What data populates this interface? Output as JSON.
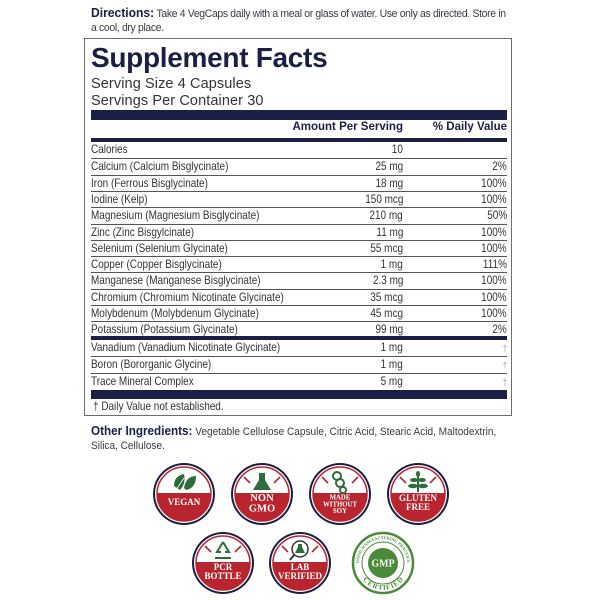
{
  "directions": {
    "label": "Directions:",
    "text": " Take 4 VegCaps daily with a meal or glass of water. Use only as directed. Store in a cool, dry place."
  },
  "supplement_facts": {
    "title": "Supplement Facts",
    "serving_size": "Serving Size 4 Capsules",
    "servings_per_container": "Servings Per Container 30",
    "columns": {
      "amount": "Amount Per Serving",
      "daily_value": "% Daily Value"
    },
    "rows": [
      {
        "name": "Calories",
        "amount": "10",
        "dv": ""
      },
      {
        "name": "Calcium (Calcium Bisglycinate)",
        "amount": "25 mg",
        "dv": "2%"
      },
      {
        "name": "Iron (Ferrous Bisglycinate)",
        "amount": "18 mg",
        "dv": "100%"
      },
      {
        "name": "Iodine (Kelp)",
        "amount": "150 mcg",
        "dv": "100%"
      },
      {
        "name": "Magnesium (Magnesium Bisglycinate)",
        "amount": "210 mg",
        "dv": "50%"
      },
      {
        "name": "Zinc (Zinc Bisgylcinate)",
        "amount": "11 mg",
        "dv": "100%"
      },
      {
        "name": "Selenium (Selenium Glycinate)",
        "amount": "55 mcg",
        "dv": "100%"
      },
      {
        "name": "Copper (Copper Bisglycinate)",
        "amount": "1 mg",
        "dv": "111%"
      },
      {
        "name": "Manganese (Manganese Bisglycinate)",
        "amount": "2.3 mg",
        "dv": "100%"
      },
      {
        "name": "Chromium (Chromium Nicotinate Glycinate)",
        "amount": "35 mcg",
        "dv": "100%"
      },
      {
        "name": "Molybdenum (Molybdenum Glycinate)",
        "amount": "45 mcg",
        "dv": "100%"
      },
      {
        "name": "Potassium (Potassium Glycinate)",
        "amount": "99 mg",
        "dv": "2%"
      }
    ],
    "rows_no_dv": [
      {
        "name": "Vanadium (Vanadium Nicotinate Glycinate)",
        "amount": "1 mg",
        "dv": "†"
      },
      {
        "name": "Boron (Bororganic Glycine)",
        "amount": "1 mg",
        "dv": "†"
      },
      {
        "name": "Trace Mineral Complex",
        "amount": "5 mg",
        "dv": "†"
      }
    ],
    "footnote": "† Daily Value not established."
  },
  "other_ingredients": {
    "label": "Other Ingredients:",
    "text": " Vegetable Cellulose Capsule, Citric Acid, Stearic Acid, Maltodextrin, Silica, Cellulose."
  },
  "badges": [
    {
      "id": "vegan",
      "lines": [
        "VEGAN"
      ],
      "icon": "leaf-icon"
    },
    {
      "id": "non-gmo",
      "lines": [
        "NON",
        "GMO"
      ],
      "icon": "flask-icon"
    },
    {
      "id": "made-without-soy",
      "lines": [
        "MADE",
        "WITHOUT",
        "SOY"
      ],
      "icon": "soybean-icon"
    },
    {
      "id": "gluten-free",
      "lines": [
        "GLUTEN",
        "FREE"
      ],
      "icon": "wheat-icon"
    },
    {
      "id": "pcr-bottle",
      "lines": [
        "PCR",
        "BOTTLE"
      ],
      "icon": "recycle-icon"
    },
    {
      "id": "lab-verified",
      "lines": [
        "LAB",
        "VERIFIED"
      ],
      "icon": "magnifier-flask-icon"
    },
    {
      "id": "gmp-certified",
      "center": "GMP",
      "ring_top": "GOOD MANUFACTURING PRACTICE",
      "ring_bottom": "CERTIFIED",
      "icon": "gmp-seal-icon"
    }
  ],
  "colors": {
    "navy": "#1c1f45",
    "badge_red": "#b8252e",
    "badge_green": "#2e6b3a",
    "gmp_green": "#4a8a3a",
    "border_gray": "#6d6d70"
  }
}
